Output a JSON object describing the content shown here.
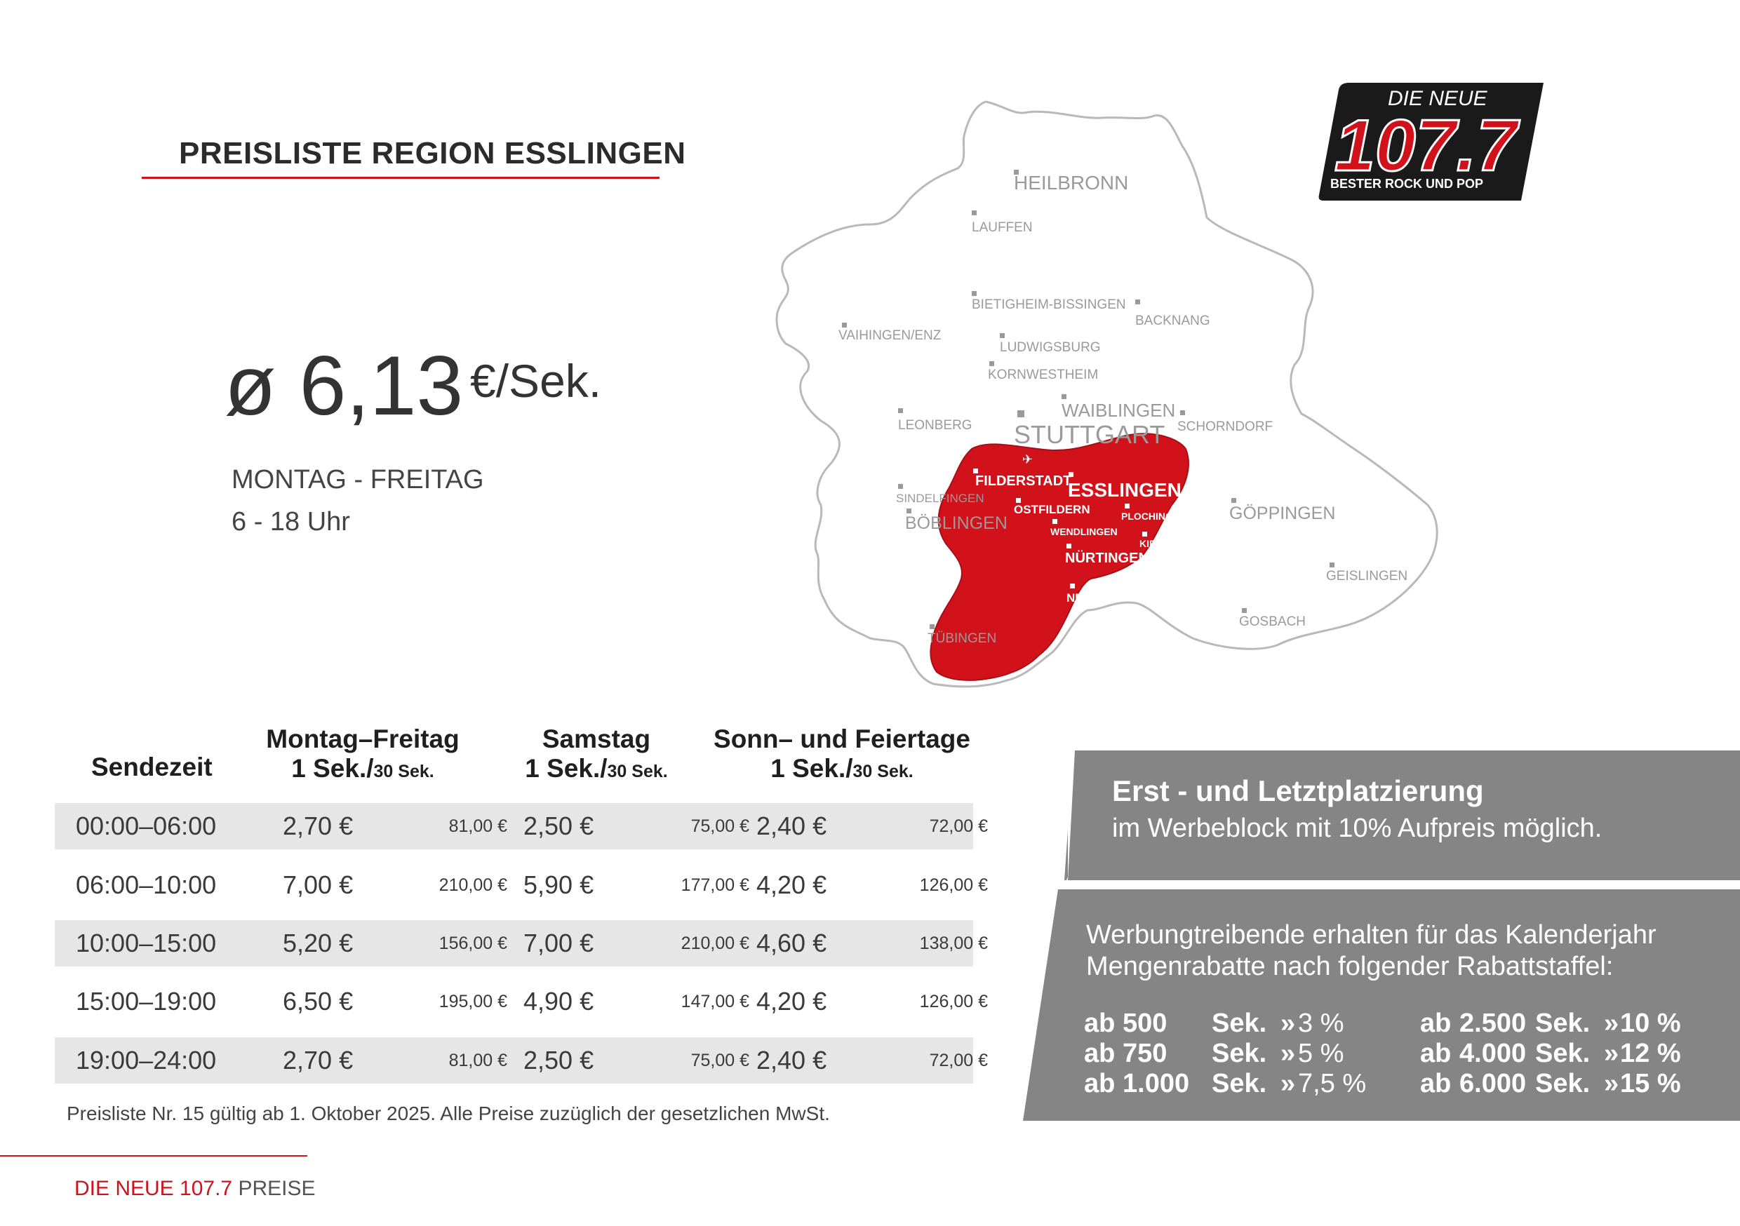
{
  "header": {
    "title": "PREISLISTE REGION ESSLINGEN"
  },
  "price": {
    "average": "ø 6,13",
    "unit": "€/Sek.",
    "days": "MONTAG - FREITAG",
    "hours": "6 - 18 Uhr"
  },
  "logo": {
    "line1": "DIE NEUE",
    "number": "107.7",
    "tagline": "BESTER ROCK UND POP"
  },
  "map": {
    "cities_grey": [
      "HEILBRONN",
      "LAUFFEN",
      "BIETIGHEIM-BISSINGEN",
      "BACKNANG",
      "VAIHINGEN/ENZ",
      "LUDWIGSBURG",
      "KORNWESTHEIM",
      "WAIBLINGEN",
      "STUTTGART",
      "LEONBERG",
      "SCHORNDORF",
      "SINDELFINGEN",
      "BÖBLINGEN",
      "GÖPPINGEN",
      "GEISLINGEN",
      "GOSBACH",
      "TÜBINGEN"
    ],
    "cities_red": [
      "FILDERSTADT",
      "ESSLINGEN",
      "OSTFILDERN",
      "PLOCHINGEN",
      "WENDLINGEN",
      "KIRCHHEIM",
      "NÜRTINGEN",
      "NEUFFEN"
    ],
    "colors": {
      "region": "#d1121b",
      "outline": "#b5b5b5",
      "labels": "#8a8a8a"
    }
  },
  "table": {
    "headers": {
      "sendezeit": "Sendezeit",
      "col1_title": "Montag–Freitag",
      "col2_title": "Samstag",
      "col3_title": "Sonn– und Feiertage",
      "unit_main": "1 Sek./",
      "unit_small": "30 Sek."
    },
    "rows": [
      {
        "time": "00:00–06:00",
        "mf1": "2,70 €",
        "mf30": "81,00 €",
        "sa1": "2,50 €",
        "sa30": "75,00 €",
        "so1": "2,40 €",
        "so30": "72,00 €"
      },
      {
        "time": "06:00–10:00",
        "mf1": "7,00 €",
        "mf30": "210,00 €",
        "sa1": "5,90 €",
        "sa30": "177,00 €",
        "so1": "4,20 €",
        "so30": "126,00 €"
      },
      {
        "time": "10:00–15:00",
        "mf1": "5,20 €",
        "mf30": "156,00 €",
        "sa1": "7,00 €",
        "sa30": "210,00 €",
        "so1": "4,60 €",
        "so30": "138,00 €"
      },
      {
        "time": "15:00–19:00",
        "mf1": "6,50 €",
        "mf30": "195,00 €",
        "sa1": "4,90 €",
        "sa30": "147,00 €",
        "so1": "4,20 €",
        "so30": "126,00 €"
      },
      {
        "time": "19:00–24:00",
        "mf1": "2,70 €",
        "mf30": "81,00 €",
        "sa1": "2,50 €",
        "sa30": "75,00 €",
        "so1": "2,40 €",
        "so30": "72,00 €"
      }
    ],
    "footnote": "Preisliste Nr. 15 gültig ab 1. Oktober 2025. Alle Preise zuzüglich der gesetzlichen MwSt."
  },
  "placement": {
    "title": "Erst - und Letztplatzierung",
    "subtitle": "im Werbeblock mit 10% Aufpreis möglich."
  },
  "discount": {
    "line1": "Werbungtreibende erhalten für das Kalenderjahr",
    "line2": "Mengenrabatte nach folgender Rabattstaffel:",
    "left": [
      {
        "ab": "ab",
        "amount": "500",
        "unit": "Sek.",
        "arrow": "»",
        "pct": "3 %"
      },
      {
        "ab": "ab",
        "amount": "750",
        "unit": "Sek.",
        "arrow": "»",
        "pct": "5 %"
      },
      {
        "ab": "ab",
        "amount": "1.000",
        "unit": "Sek.",
        "arrow": "»",
        "pct": "7,5 %"
      }
    ],
    "right": [
      {
        "ab": "ab",
        "amount": "2.500",
        "unit": "Sek.",
        "arrow": "»",
        "pct": "10 %"
      },
      {
        "ab": "ab",
        "amount": "4.000",
        "unit": "Sek.",
        "arrow": "»",
        "pct": "12 %"
      },
      {
        "ab": "ab",
        "amount": "6.000",
        "unit": "Sek.",
        "arrow": "»",
        "pct": "15 %"
      }
    ],
    "panel_color": "#858585"
  },
  "footer": {
    "brand_red": "DIE NEUE 107.7",
    "brand_grey": "PREISE"
  }
}
